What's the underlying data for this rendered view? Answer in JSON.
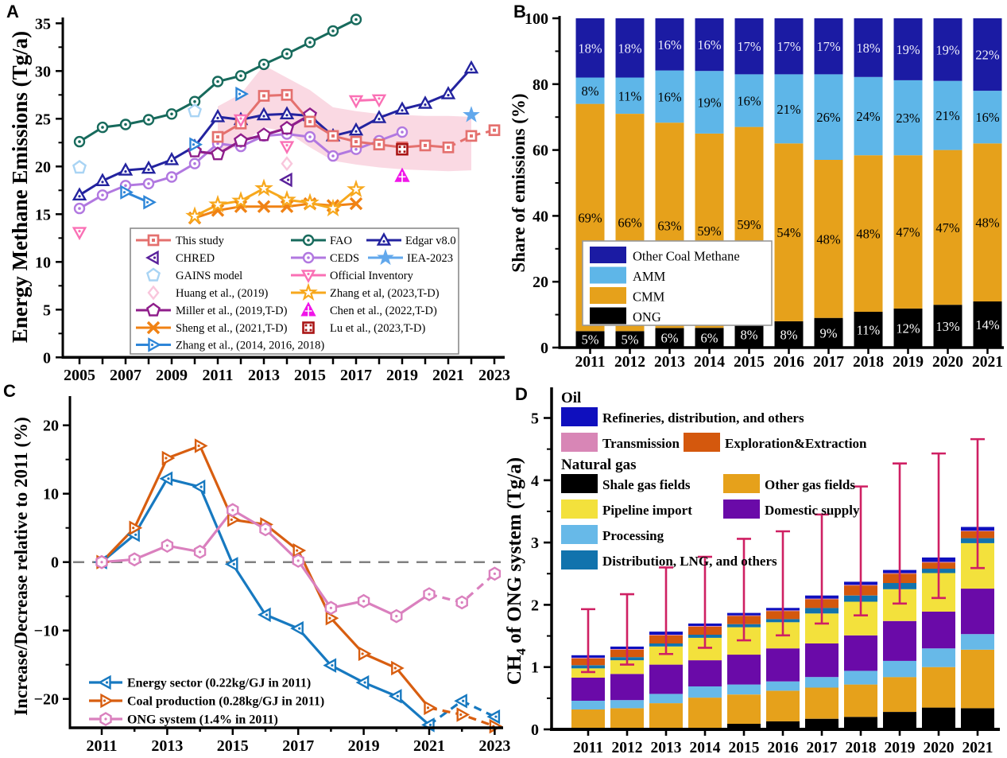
{
  "figure": {
    "background": "#ffffff",
    "panels": {
      "a": "A",
      "b": "B",
      "c": "C",
      "d": "D"
    }
  },
  "chart_data": {
    "A": {
      "type": "line",
      "ylabel": "Energy Methane Emissions (Tg/a)",
      "xticks": [
        2005,
        2007,
        2009,
        2011,
        2013,
        2015,
        2017,
        2019,
        2021,
        2023
      ],
      "yticks": [
        0,
        5,
        10,
        15,
        20,
        25,
        30,
        35
      ],
      "xlim": [
        2004.3,
        2023.6
      ],
      "ylim": [
        0,
        35.6
      ],
      "band": {
        "color": "#f8ccd9",
        "years": [
          2011,
          2012,
          2013,
          2014,
          2015,
          2016,
          2017,
          2018,
          2019,
          2020,
          2021,
          2022
        ],
        "upper": [
          26.3,
          27.6,
          30.6,
          29.3,
          28.0,
          26.2,
          25.8,
          25.5,
          25.4,
          25.3,
          25.3,
          25.2
        ],
        "lower": [
          21.2,
          22.3,
          24.1,
          23.6,
          22.0,
          20.6,
          20.2,
          19.9,
          19.7,
          19.6,
          19.5,
          19.6
        ]
      },
      "series": [
        {
          "id": "fao",
          "name": "FAO",
          "color": "#176a5c",
          "marker": "circle-dot",
          "lw": 3,
          "x": [
            2005,
            2006,
            2007,
            2008,
            2009,
            2010,
            2011,
            2012,
            2013,
            2014,
            2015,
            2016,
            2017
          ],
          "y": [
            22.6,
            24.1,
            24.4,
            24.9,
            25.5,
            26.8,
            28.9,
            29.5,
            30.7,
            31.8,
            33.0,
            34.2,
            35.4
          ]
        },
        {
          "id": "ceds",
          "name": "CEDS",
          "color": "#b178e0",
          "marker": "circle-dot",
          "lw": 3,
          "x": [
            2005,
            2006,
            2007,
            2008,
            2009,
            2010,
            2011,
            2012,
            2013,
            2014,
            2015,
            2016,
            2017,
            2018,
            2019
          ],
          "y": [
            15.6,
            17.0,
            18.0,
            18.2,
            18.9,
            20.3,
            22.4,
            22.1,
            23.2,
            23.4,
            23.1,
            21.1,
            21.8,
            22.7,
            23.6
          ]
        },
        {
          "id": "edgar",
          "name": "Edgar v8.0",
          "color": "#23239f",
          "marker": "tri-up-dot",
          "lw": 3,
          "x": [
            2005,
            2006,
            2007,
            2008,
            2009,
            2010,
            2011,
            2012,
            2013,
            2014,
            2015,
            2016,
            2017,
            2018,
            2019,
            2020,
            2021,
            2022
          ],
          "y": [
            17.0,
            18.5,
            19.6,
            19.8,
            20.7,
            22.1,
            25.2,
            24.9,
            25.4,
            25.5,
            25.3,
            23.2,
            23.8,
            25.1,
            26.0,
            26.6,
            27.6,
            30.3
          ]
        },
        {
          "id": "miller",
          "name": "Miller et al., (2019,T-D)",
          "color": "#8f1e8b",
          "marker": "pentagon",
          "lw": 3.2,
          "x": [
            2010,
            2011,
            2012,
            2013,
            2014,
            2015
          ],
          "y": [
            21.6,
            21.3,
            22.7,
            23.3,
            24.0,
            25.4
          ]
        },
        {
          "id": "this_study",
          "name": "This study",
          "color": "#e4706e",
          "marker": "square-dot",
          "lw": 3,
          "dash_from": 2021,
          "x": [
            2011,
            2012,
            2013,
            2014,
            2015,
            2016,
            2017,
            2018,
            2019,
            2020,
            2021,
            2022,
            2023
          ],
          "y": [
            23.1,
            24.5,
            27.4,
            27.5,
            24.7,
            23.2,
            22.6,
            22.3,
            22.0,
            22.2,
            22.0,
            23.2,
            23.8
          ]
        },
        {
          "id": "sheng",
          "name": "Sheng et al., (2021,T-D)",
          "color": "#f08214",
          "marker": "x",
          "lw": 3,
          "x": [
            2010,
            2011,
            2012,
            2013,
            2014,
            2015,
            2016,
            2017
          ],
          "y": [
            14.6,
            15.4,
            15.8,
            15.8,
            15.8,
            16.1,
            15.9,
            16.1
          ]
        },
        {
          "id": "zhang_td",
          "name": "Zhang et al, (2023,T-D)",
          "color": "#f7a81d",
          "marker": "star",
          "lw": 3,
          "x": [
            2010,
            2011,
            2012,
            2013,
            2014,
            2015,
            2016,
            2017
          ],
          "y": [
            14.8,
            16.0,
            16.4,
            17.7,
            16.5,
            16.2,
            15.6,
            17.6
          ]
        },
        {
          "id": "zhang_bu",
          "name": "Zhang et al., (2014, 2016, 2018)",
          "color": "#2e86d8",
          "marker": "tri-right",
          "lw": 3,
          "lines": [
            [
              [
                2007,
                17.3
              ],
              [
                2008,
                16.25
              ]
            ]
          ],
          "points": [
            [
              2007,
              17.3
            ],
            [
              2008,
              16.25
            ],
            [
              2010,
              22.3
            ],
            [
              2012,
              27.6
            ]
          ]
        },
        {
          "id": "official",
          "name": "Official Inventory",
          "color": "#fa70b5",
          "marker": "tri-down",
          "lw": 3,
          "lines": [
            [
              [
                2017,
                26.9
              ],
              [
                2018,
                27.0
              ]
            ]
          ],
          "points": [
            [
              2005,
              13.1
            ],
            [
              2012,
              24.9
            ],
            [
              2014,
              22.1
            ],
            [
              2017,
              26.9
            ],
            [
              2018,
              27.0
            ]
          ]
        },
        {
          "id": "gains",
          "name": "GAINS model",
          "color": "#a9d4f4",
          "marker": "pentagon",
          "lw": 2.4,
          "points": [
            [
              2005,
              19.9
            ],
            [
              2010,
              25.8
            ]
          ]
        },
        {
          "id": "huang",
          "name": "Huang et al., (2019)",
          "color": "#f9c6dc",
          "marker": "diamond",
          "lw": 2.4,
          "points": [
            [
              2014,
              20.3
            ]
          ]
        },
        {
          "id": "chred",
          "name": "CHRED",
          "color": "#59209b",
          "marker": "tri-left",
          "lw": 2.8,
          "points": [
            [
              2014,
              18.6
            ]
          ]
        },
        {
          "id": "chen",
          "name": "Chen et al., (2022,T-D)",
          "color": "#f015e8",
          "marker": "chen",
          "lw": 2.8,
          "points": [
            [
              2019,
              19.0
            ]
          ]
        },
        {
          "id": "lu",
          "name": "Lu et al., (2023,T-D)",
          "color": "#a91414",
          "marker": "lu",
          "lw": 2.8,
          "points": [
            [
              2019,
              21.8
            ]
          ]
        },
        {
          "id": "iea",
          "name": "IEA-2023",
          "color": "#62a8ec",
          "marker": "star-filled",
          "lw": 2.4,
          "points": [
            [
              2022,
              25.4
            ]
          ]
        }
      ],
      "legend_slots": [
        "L0:this_study:line",
        "L1:chred:mark",
        "L2:gains:mark",
        "L3:huang:mark",
        "L4:miller:line",
        "L5:sheng:line",
        "L6:zhang_bu:line",
        "R0a:fao:line",
        "R0b:edgar:line",
        "R1a:ceds:line",
        "R1b:iea:line",
        "R2:official:line",
        "R3:zhang_td:line",
        "R4:chen:mark",
        "R5:lu:mark"
      ]
    },
    "B": {
      "type": "stacked-bar",
      "ylabel": "Share of emissions (%)",
      "categories": [
        2011,
        2012,
        2013,
        2014,
        2015,
        2016,
        2017,
        2018,
        2019,
        2020,
        2021
      ],
      "yticks": [
        0,
        20,
        40,
        60,
        80,
        100
      ],
      "series": [
        {
          "name": "ONG",
          "color": "#000000",
          "label_color": "#ffffff",
          "values": [
            5,
            5,
            6,
            6,
            8,
            8,
            9,
            11,
            12,
            13,
            14
          ]
        },
        {
          "name": "CMM",
          "color": "#e6a11b",
          "label_color": "#000000",
          "values": [
            69,
            66,
            63,
            59,
            59,
            54,
            48,
            48,
            47,
            47,
            48
          ]
        },
        {
          "name": "AMM",
          "color": "#5eb6e8",
          "label_color": "#000000",
          "values": [
            8,
            11,
            16,
            19,
            16,
            21,
            26,
            24,
            23,
            21,
            16
          ]
        },
        {
          "name": "Other Coal Methane",
          "color": "#1b1ba3",
          "label_color": "#efeffc",
          "values": [
            18,
            18,
            16,
            16,
            17,
            17,
            17,
            18,
            19,
            19,
            22
          ]
        }
      ],
      "legend_order": [
        "Other Coal Methane",
        "AMM",
        "CMM",
        "ONG"
      ]
    },
    "C": {
      "type": "line",
      "ylabel": "Increase/Decrease relative to 2011 (%)",
      "xticks": [
        2011,
        2013,
        2015,
        2017,
        2019,
        2021,
        2023
      ],
      "yticks": [
        -20,
        -10,
        0,
        10,
        20
      ],
      "xlim": [
        2010.5,
        2023.3
      ],
      "ylim": [
        -24.2,
        24.3
      ],
      "zero_line": {
        "color": "#808080"
      },
      "series": [
        {
          "id": "energy",
          "name": "Energy sector (0.22kg/GJ in 2011)",
          "color": "#1779c0",
          "marker": "tri-left",
          "lw": 3.2,
          "dash_from": 2021,
          "x": [
            2011,
            2012,
            2013,
            2014,
            2015,
            2016,
            2017,
            2018,
            2019,
            2020,
            2021,
            2022,
            2023
          ],
          "y": [
            0,
            4.0,
            12.2,
            11.0,
            -0.3,
            -7.7,
            -9.7,
            -15.1,
            -17.6,
            -19.6,
            -23.8,
            -20.3,
            -22.6
          ]
        },
        {
          "id": "coal",
          "name": "Coal production (0.28kg/GJ in 2011)",
          "color": "#d85e10",
          "marker": "tri-right",
          "lw": 3.2,
          "dash_from": 2021,
          "x": [
            2011,
            2012,
            2013,
            2014,
            2015,
            2016,
            2017,
            2018,
            2019,
            2020,
            2021,
            2022,
            2023
          ],
          "y": [
            0,
            5.0,
            15.2,
            17.0,
            6.2,
            5.5,
            1.7,
            -8.2,
            -13.4,
            -15.5,
            -21.3,
            -22.3,
            -24.0
          ]
        },
        {
          "id": "ongsys",
          "name": "ONG system (1.4% in 2011)",
          "color": "#da80be",
          "marker": "hexagon",
          "lw": 3.2,
          "dash_from": 2021,
          "x": [
            2011,
            2012,
            2013,
            2014,
            2015,
            2016,
            2017,
            2018,
            2019,
            2020,
            2021,
            2022,
            2023
          ],
          "y": [
            0,
            0.4,
            2.4,
            1.5,
            7.6,
            4.8,
            0.2,
            -6.7,
            -5.7,
            -7.9,
            -4.7,
            -5.9,
            -1.7
          ]
        }
      ]
    },
    "D": {
      "type": "stacked-bar",
      "ylabel": {
        "pre": "CH",
        "sub": "4",
        "post": " of ONG system (Tg/a)"
      },
      "categories": [
        2011,
        2012,
        2013,
        2014,
        2015,
        2016,
        2017,
        2018,
        2019,
        2020,
        2021
      ],
      "yticks": [
        0,
        1,
        2,
        3,
        4,
        5
      ],
      "series": [
        {
          "name": "Shale gas fields",
          "color": "#000000",
          "values": [
            0.0,
            0.0,
            0.0,
            0.01,
            0.09,
            0.13,
            0.17,
            0.2,
            0.28,
            0.35,
            0.34
          ]
        },
        {
          "name": "Other gas fields",
          "color": "#e6a11b",
          "values": [
            0.32,
            0.34,
            0.42,
            0.5,
            0.47,
            0.49,
            0.5,
            0.52,
            0.56,
            0.65,
            0.94
          ]
        },
        {
          "name": "Processing",
          "color": "#67b9e8",
          "values": [
            0.14,
            0.13,
            0.15,
            0.18,
            0.16,
            0.15,
            0.17,
            0.22,
            0.26,
            0.3,
            0.25
          ]
        },
        {
          "name": "Domestic supply",
          "color": "#6a0aa8",
          "values": [
            0.37,
            0.42,
            0.47,
            0.42,
            0.48,
            0.53,
            0.54,
            0.57,
            0.64,
            0.59,
            0.73
          ]
        },
        {
          "name": "Pipeline import",
          "color": "#f3e13c",
          "values": [
            0.15,
            0.22,
            0.29,
            0.36,
            0.44,
            0.42,
            0.48,
            0.54,
            0.51,
            0.62,
            0.73
          ]
        },
        {
          "name": "Distribution, LNG, and others",
          "color": "#1173ad",
          "values": [
            0.05,
            0.05,
            0.05,
            0.05,
            0.05,
            0.05,
            0.09,
            0.1,
            0.1,
            0.07,
            0.08
          ]
        },
        {
          "name": "Exploration&Extraction",
          "color": "#d4580d",
          "values": [
            0.11,
            0.12,
            0.13,
            0.13,
            0.13,
            0.13,
            0.14,
            0.16,
            0.15,
            0.1,
            0.11
          ]
        },
        {
          "name": "Transmission",
          "color": "#d886b6",
          "values": [
            0.01,
            0.01,
            0.01,
            0.01,
            0.01,
            0.01,
            0.01,
            0.01,
            0.01,
            0.01,
            0.01
          ]
        },
        {
          "name": "Refineries, distribution, and others",
          "color": "#0f0fbe",
          "values": [
            0.04,
            0.04,
            0.05,
            0.04,
            0.04,
            0.04,
            0.05,
            0.05,
            0.05,
            0.07,
            0.06
          ]
        }
      ],
      "errors": {
        "color": "#cf2063",
        "low": [
          0.92,
          1.04,
          1.21,
          1.31,
          1.43,
          1.51,
          1.7,
          1.83,
          2.02,
          2.11,
          2.59
        ],
        "high": [
          1.93,
          2.17,
          2.6,
          2.77,
          3.06,
          3.18,
          3.45,
          3.9,
          4.27,
          4.43,
          4.66
        ]
      },
      "legend": {
        "group1": "Oil",
        "group2": "Natural gas",
        "rows": [
          {
            "items": [
              {
                "name": "Refineries, distribution, and others"
              }
            ]
          },
          {
            "items": [
              {
                "name": "Transmission"
              },
              {
                "name": "Exploration&Extraction"
              }
            ]
          },
          {
            "items": [
              {
                "name": "Shale gas fields"
              },
              {
                "name": "Other gas fields"
              }
            ]
          },
          {
            "items": [
              {
                "name": "Pipeline import"
              },
              {
                "name": "Domestic supply"
              }
            ]
          },
          {
            "items": [
              {
                "name": "Processing"
              }
            ]
          },
          {
            "items": [
              {
                "name": "Distribution, LNG, and others"
              }
            ]
          }
        ]
      }
    }
  }
}
